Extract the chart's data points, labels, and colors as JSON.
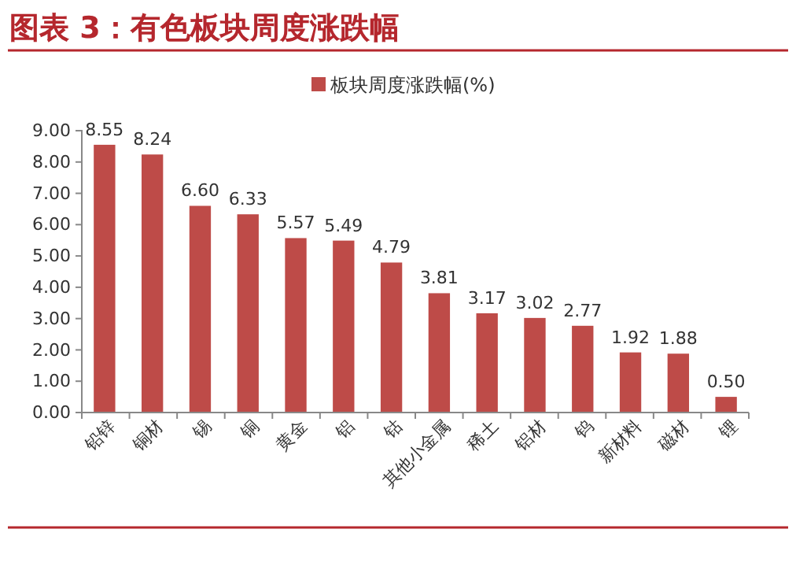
{
  "chart_data": {
    "type": "bar",
    "title": "图表 3：有色板块周度涨跌幅",
    "categories": [
      "铅锌",
      "铜材",
      "锡",
      "铜",
      "黄金",
      "铝",
      "钴",
      "其他小金属",
      "稀土",
      "铝材",
      "钨",
      "新材料",
      "磁材",
      "锂"
    ],
    "series": [
      {
        "name": "板块周度涨跌幅(%)",
        "color": "#be4b48",
        "values": [
          8.55,
          8.24,
          6.6,
          6.33,
          5.57,
          5.49,
          4.79,
          3.81,
          3.17,
          3.02,
          2.77,
          1.92,
          1.88,
          0.5
        ]
      }
    ],
    "value_labels": [
      "8.55",
      "8.24",
      "6.60",
      "6.33",
      "5.57",
      "5.49",
      "4.79",
      "3.81",
      "3.17",
      "3.02",
      "2.77",
      "1.92",
      "1.88",
      "0.50"
    ],
    "ylim": [
      0,
      9
    ],
    "yticks": [
      {
        "value": 0,
        "label": "0.00"
      },
      {
        "value": 1,
        "label": "1.00"
      },
      {
        "value": 2,
        "label": "2.00"
      },
      {
        "value": 3,
        "label": "3.00"
      },
      {
        "value": 4,
        "label": "4.00"
      },
      {
        "value": 5,
        "label": "5.00"
      },
      {
        "value": 6,
        "label": "6.00"
      },
      {
        "value": 7,
        "label": "7.00"
      },
      {
        "value": 8,
        "label": "8.00"
      },
      {
        "value": 9,
        "label": "9.00"
      }
    ],
    "legend": "top",
    "grid": false
  }
}
